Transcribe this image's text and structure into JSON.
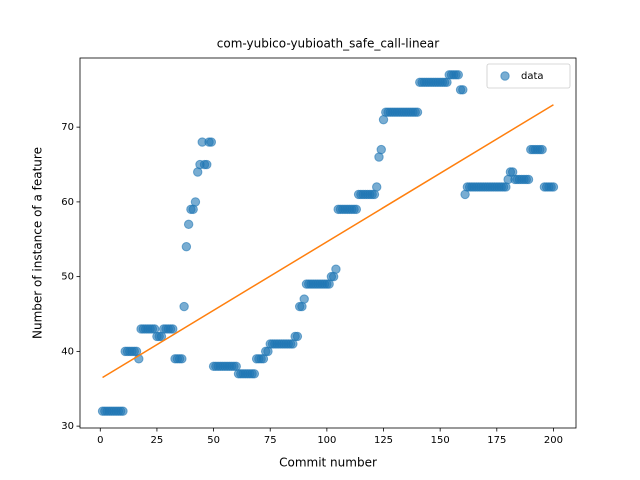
{
  "chart_data": {
    "type": "scatter",
    "title": "com-yubico-yubioath_safe_call-linear",
    "xlabel": "Commit number",
    "ylabel": "Number of instance of a feature",
    "xlim": [
      -8.95,
      209.95
    ],
    "ylim": [
      29.75,
      79.25
    ],
    "xticks": [
      0,
      25,
      50,
      75,
      100,
      125,
      150,
      175,
      200
    ],
    "yticks": [
      30,
      40,
      50,
      60,
      70
    ],
    "legend": "upper right",
    "series": [
      {
        "name": "data",
        "color": "#1f77b4",
        "x": [
          1,
          2,
          3,
          4,
          5,
          6,
          7,
          8,
          9,
          10,
          11,
          12,
          13,
          14,
          15,
          16,
          17,
          18,
          19,
          20,
          21,
          22,
          23,
          24,
          25,
          26,
          27,
          28,
          29,
          30,
          31,
          32,
          33,
          34,
          35,
          36,
          37,
          38,
          39,
          40,
          41,
          42,
          43,
          44,
          45,
          46,
          47,
          48,
          49,
          50,
          51,
          52,
          53,
          54,
          55,
          56,
          57,
          58,
          59,
          60,
          61,
          62,
          63,
          64,
          65,
          66,
          67,
          68,
          69,
          70,
          71,
          72,
          73,
          74,
          75,
          76,
          77,
          78,
          79,
          80,
          81,
          82,
          83,
          84,
          85,
          86,
          87,
          88,
          89,
          90,
          91,
          92,
          93,
          94,
          95,
          96,
          97,
          98,
          99,
          100,
          101,
          102,
          103,
          104,
          105,
          106,
          107,
          108,
          109,
          110,
          111,
          112,
          113,
          114,
          115,
          116,
          117,
          118,
          119,
          120,
          121,
          122,
          123,
          124,
          125,
          126,
          127,
          128,
          129,
          130,
          131,
          132,
          133,
          134,
          135,
          136,
          137,
          138,
          139,
          140,
          141,
          142,
          143,
          144,
          145,
          146,
          147,
          148,
          149,
          150,
          151,
          152,
          153,
          154,
          155,
          156,
          157,
          158,
          159,
          160,
          161,
          162,
          163,
          164,
          165,
          166,
          167,
          168,
          169,
          170,
          171,
          172,
          173,
          174,
          175,
          176,
          177,
          178,
          179,
          180,
          181,
          182,
          183,
          184,
          185,
          186,
          187,
          188,
          189,
          190,
          191,
          192,
          193,
          194,
          195,
          196,
          197,
          198,
          199,
          200
        ],
        "values": [
          32,
          32,
          32,
          32,
          32,
          32,
          32,
          32,
          32,
          32,
          40,
          40,
          40,
          40,
          40,
          40,
          39,
          43,
          43,
          43,
          43,
          43,
          43,
          43,
          42,
          42,
          42,
          43,
          43,
          43,
          43,
          43,
          39,
          39,
          39,
          39,
          46,
          54,
          57,
          59,
          59,
          60,
          64,
          65,
          68,
          65,
          65,
          68,
          68,
          38,
          38,
          38,
          38,
          38,
          38,
          38,
          38,
          38,
          38,
          38,
          37,
          37,
          37,
          37,
          37,
          37,
          37,
          37,
          39,
          39,
          39,
          39,
          40,
          40,
          41,
          41,
          41,
          41,
          41,
          41,
          41,
          41,
          41,
          41,
          41,
          42,
          42,
          46,
          46,
          47,
          49,
          49,
          49,
          49,
          49,
          49,
          49,
          49,
          49,
          49,
          49,
          50,
          50,
          51,
          59,
          59,
          59,
          59,
          59,
          59,
          59,
          59,
          59,
          61,
          61,
          61,
          61,
          61,
          61,
          61,
          61,
          62,
          66,
          67,
          71,
          72,
          72,
          72,
          72,
          72,
          72,
          72,
          72,
          72,
          72,
          72,
          72,
          72,
          72,
          72,
          76,
          76,
          76,
          76,
          76,
          76,
          76,
          76,
          76,
          76,
          76,
          76,
          76,
          77,
          77,
          77,
          77,
          77,
          75,
          75,
          61,
          62,
          62,
          62,
          62,
          62,
          62,
          62,
          62,
          62,
          62,
          62,
          62,
          62,
          62,
          62,
          62,
          62,
          62,
          63,
          64,
          64,
          63,
          63,
          63,
          63,
          63,
          63,
          63,
          67,
          67,
          67,
          67,
          67,
          67,
          62,
          62,
          62,
          62,
          62
        ]
      }
    ],
    "fit": {
      "color": "#ff7f0e",
      "x": [
        1,
        200
      ],
      "values": [
        36.5,
        73
      ]
    }
  }
}
